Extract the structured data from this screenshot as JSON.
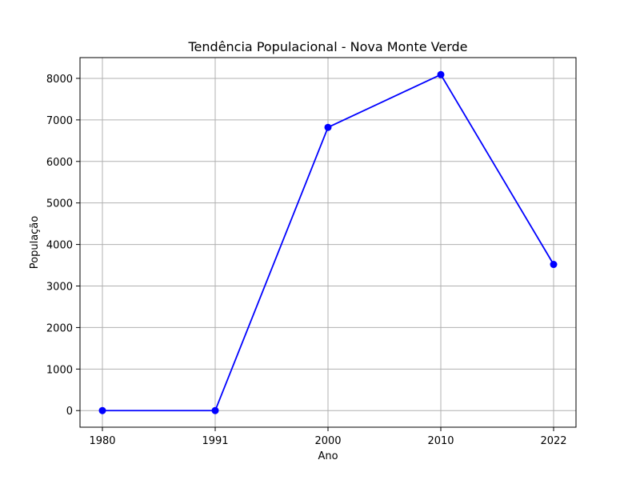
{
  "chart_data": {
    "type": "line",
    "title": "Tendência Populacional - Nova Monte Verde",
    "xlabel": "Ano",
    "ylabel": "População",
    "categories": [
      "1980",
      "1991",
      "2000",
      "2010",
      "2022"
    ],
    "series": [
      {
        "values": [
          0,
          0,
          6820,
          8090,
          3520
        ],
        "color": "#0000ff",
        "marker": "circle"
      }
    ],
    "ylim": [
      -400,
      8500
    ],
    "yticks": [
      0,
      1000,
      2000,
      3000,
      4000,
      5000,
      6000,
      7000,
      8000
    ],
    "grid": true,
    "legend": "none"
  }
}
